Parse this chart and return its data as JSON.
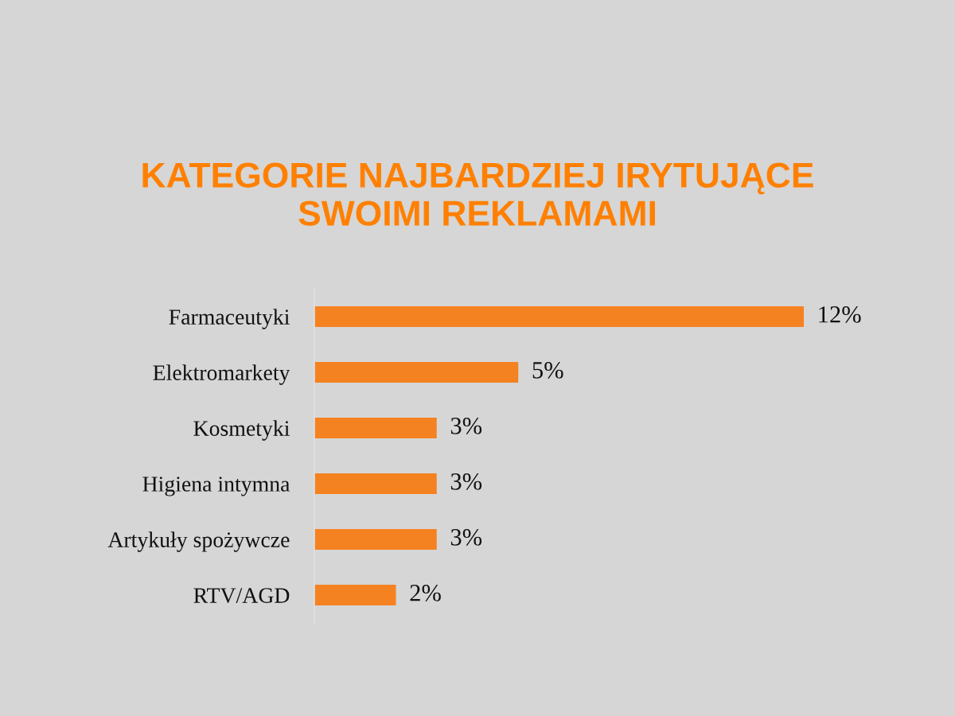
{
  "chart_data": {
    "type": "bar",
    "orientation": "horizontal",
    "title": "KATEGORIE NAJBARDZIEJ IRYTUJĄCE\nSWOIMI REKLAMAMI",
    "categories": [
      "Farmaceutyki",
      "Elektromarkety",
      "Kosmetyki",
      "Higiena intymna",
      "Artykuły spożywcze",
      "RTV/AGD"
    ],
    "values": [
      12,
      5,
      3,
      3,
      3,
      2
    ],
    "value_labels": [
      "12%",
      "5%",
      "3%",
      "3%",
      "3%",
      "2%"
    ],
    "color": "#f58220"
  }
}
